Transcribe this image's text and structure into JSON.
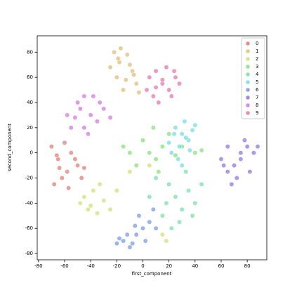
{
  "chart_data": {
    "type": "scatter",
    "x_label": "first_component",
    "y_label": "second_component",
    "xlim": [
      -81,
      95
    ],
    "ylim": [
      -85,
      93
    ],
    "xticks": [
      -80,
      -60,
      -40,
      -20,
      0,
      20,
      40,
      60,
      80
    ],
    "yticks": [
      -80,
      -60,
      -40,
      -20,
      0,
      20,
      40,
      60,
      80
    ],
    "legend": "upper right",
    "series": [
      {
        "name": "0",
        "color": "#db5f57",
        "x": [
          -70,
          -65,
          -62,
          -58,
          -55,
          -50,
          -47,
          -68,
          -60,
          -52,
          -64,
          -57,
          -45,
          -66
        ],
        "y": [
          5,
          -5,
          -20,
          -15,
          0,
          -10,
          -20,
          -25,
          8,
          -5,
          -12,
          -28,
          -12,
          -2
        ]
      },
      {
        "name": "1",
        "color": "#dbae57",
        "x": [
          -22,
          -18,
          -12,
          -8,
          -5,
          -20,
          -15,
          -10,
          -3,
          -25,
          -17,
          -13,
          -7,
          -19
        ],
        "y": [
          80,
          72,
          78,
          65,
          55,
          60,
          50,
          70,
          48,
          68,
          83,
          58,
          62,
          75
        ]
      },
      {
        "name": "2",
        "color": "#c1db57",
        "x": [
          -45,
          -40,
          -35,
          -30,
          -42,
          -38,
          -25,
          -20,
          15,
          18,
          -10,
          5,
          -48,
          -33
        ],
        "y": [
          -35,
          -42,
          -48,
          -38,
          -45,
          -30,
          -45,
          -30,
          -65,
          -70,
          -15,
          -10,
          -40,
          -25
        ]
      },
      {
        "name": "3",
        "color": "#69db57",
        "x": [
          0,
          5,
          10,
          15,
          20,
          -10,
          -5,
          25,
          40,
          45,
          30,
          8,
          -15,
          12
        ],
        "y": [
          10,
          0,
          -5,
          5,
          15,
          0,
          -10,
          -2,
          0,
          2,
          5,
          20,
          5,
          -15
        ]
      },
      {
        "name": "4",
        "color": "#57db94",
        "x": [
          20,
          25,
          30,
          35,
          15,
          28,
          40,
          10,
          22,
          33,
          5,
          45,
          18,
          38
        ],
        "y": [
          -25,
          -35,
          -45,
          -30,
          -50,
          -55,
          -40,
          -20,
          -60,
          -15,
          -35,
          -25,
          -40,
          -50
        ]
      },
      {
        "name": "5",
        "color": "#57d3db",
        "x": [
          25,
          30,
          35,
          28,
          32,
          22,
          38,
          27,
          33,
          20,
          36,
          30,
          24,
          40
        ],
        "y": [
          20,
          15,
          10,
          5,
          25,
          0,
          18,
          -5,
          12,
          8,
          2,
          -10,
          15,
          22
        ]
      },
      {
        "name": "6",
        "color": "#5784db",
        "x": [
          -15,
          -10,
          -5,
          0,
          5,
          -12,
          -8,
          2,
          10,
          -18,
          -3,
          8,
          -20,
          -6
        ],
        "y": [
          -70,
          -75,
          -65,
          -60,
          -55,
          -65,
          -72,
          -70,
          -60,
          -68,
          -50,
          -45,
          -72,
          -58
        ]
      },
      {
        "name": "7",
        "color": "#7957db",
        "x": [
          60,
          65,
          70,
          75,
          80,
          85,
          72,
          68,
          78,
          82,
          65,
          62,
          75,
          88
        ],
        "y": [
          -5,
          5,
          -10,
          0,
          5,
          0,
          -20,
          -25,
          10,
          -15,
          -15,
          -10,
          -5,
          5
        ]
      },
      {
        "name": "8",
        "color": "#c957db",
        "x": [
          -50,
          -45,
          -40,
          -35,
          -55,
          -48,
          -42,
          -30,
          -38,
          -52,
          -45,
          -25,
          -58,
          -33
        ],
        "y": [
          40,
          45,
          30,
          25,
          20,
          35,
          15,
          35,
          45,
          28,
          20,
          28,
          30,
          40
        ]
      },
      {
        "name": "9",
        "color": "#db579e",
        "x": [
          5,
          10,
          15,
          20,
          25,
          8,
          18,
          28,
          12,
          22,
          3,
          15,
          24,
          10
        ],
        "y": [
          60,
          65,
          55,
          50,
          60,
          45,
          68,
          55,
          40,
          45,
          50,
          58,
          65,
          52
        ]
      }
    ]
  }
}
